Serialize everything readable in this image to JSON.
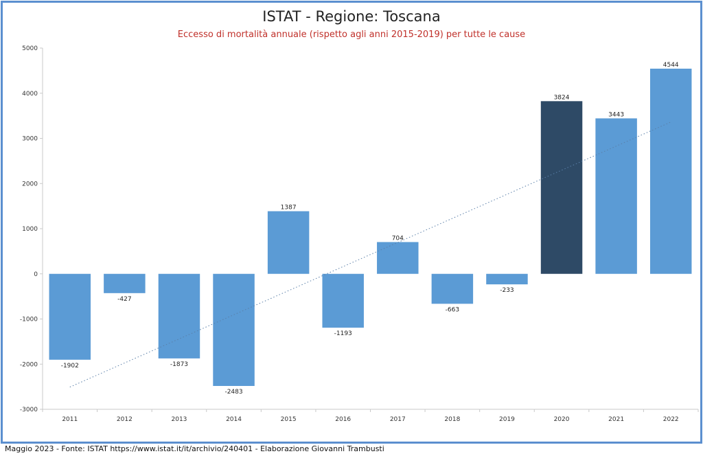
{
  "chart_data": {
    "type": "bar",
    "title": "ISTAT - Regione: Toscana",
    "subtitle": "Eccesso di mortalità annuale (rispetto agli anni 2015-2019) per tutte le cause",
    "categories": [
      "2011",
      "2012",
      "2013",
      "2014",
      "2015",
      "2016",
      "2017",
      "2018",
      "2019",
      "2020",
      "2021",
      "2022"
    ],
    "values": [
      -1902,
      -427,
      -1873,
      -2483,
      1387,
      -1193,
      704,
      -663,
      -233,
      3824,
      3443,
      4544
    ],
    "highlight_category": "2020",
    "xlabel": "",
    "ylabel": "",
    "ylim": [
      -3000,
      5000
    ],
    "yticks": [
      5000,
      4000,
      3000,
      2000,
      1000,
      0,
      -1000,
      -2000,
      -3000
    ],
    "grid": false,
    "legend": "none",
    "trendline": {
      "type": "linear",
      "style": "dotted"
    },
    "colors": {
      "bar": "#5b9bd5",
      "highlight": "#2e4a66",
      "trend": "#5a7fa8",
      "title": "#222222",
      "subtitle": "#c0302a",
      "frame": "#5b8fcf"
    }
  },
  "footer": "Maggio 2023 - Fonte: ISTAT https://www.istat.it/it/archivio/240401 - Elaborazione Giovanni Trambusti"
}
